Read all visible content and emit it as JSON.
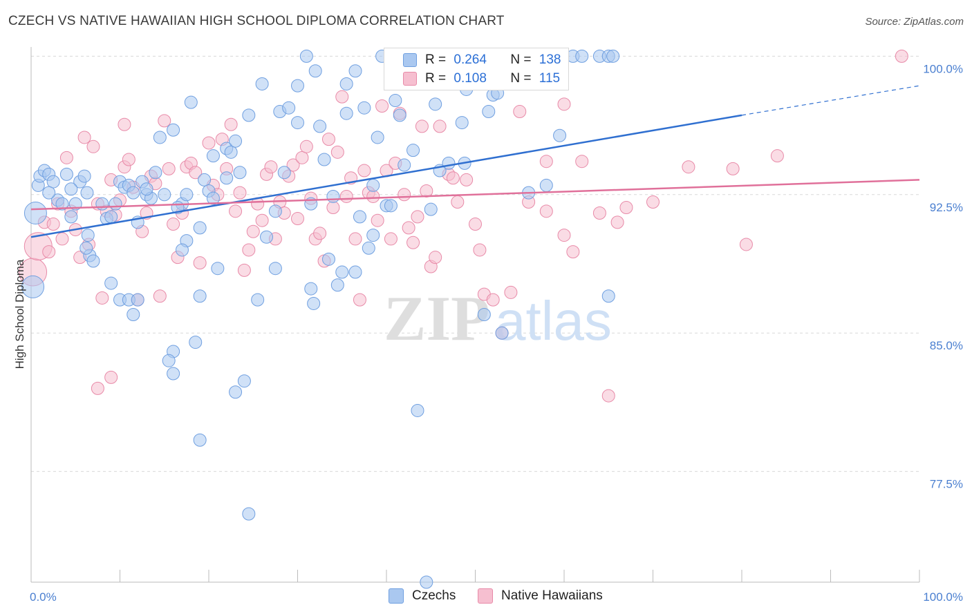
{
  "title": "CZECH VS NATIVE HAWAIIAN HIGH SCHOOL DIPLOMA CORRELATION CHART",
  "source": "Source: ZipAtlas.com",
  "watermark": {
    "zip": "ZIP",
    "atlas": "atlas"
  },
  "legend_top": {
    "czech": {
      "r_label": "R =",
      "r_value": "0.264",
      "n_label": "N =",
      "n_value": "138"
    },
    "hawaiian": {
      "r_label": "R =",
      "r_value": "0.108",
      "n_label": "N =",
      "n_value": "115"
    }
  },
  "legend_bottom": {
    "czech": "Czechs",
    "hawaiian": "Native Hawaiians"
  },
  "colors": {
    "czech_fill": "#aac8f0",
    "czech_stroke": "#6f9fe0",
    "czech_line": "#2f6fd0",
    "hawaiian_fill": "#f6bfd0",
    "hawaiian_stroke": "#e88aa8",
    "hawaiian_line": "#e0709a",
    "tick_text": "#4a7fd0",
    "grid": "#d8d8d8"
  },
  "chart_data": {
    "type": "scatter",
    "title": "CZECH VS NATIVE HAWAIIAN HIGH SCHOOL DIPLOMA CORRELATION CHART",
    "xlabel": "",
    "ylabel": "High School Diploma",
    "xlim": [
      0,
      100
    ],
    "ylim": [
      71.5,
      100.5
    ],
    "x_tick_labels": [
      "0.0%",
      "100.0%"
    ],
    "y_ticks": [
      77.5,
      85.0,
      92.5,
      100.0
    ],
    "y_tick_labels": [
      "77.5%",
      "85.0%",
      "92.5%",
      "100.0%"
    ],
    "grid": "dashed horizontal",
    "legend": "top-center",
    "series": [
      {
        "name": "Czechs",
        "r": 0.264,
        "n": 138,
        "trend": {
          "x": [
            0,
            80
          ],
          "y": [
            90.2,
            96.8
          ],
          "dashed_to": [
            100,
            98.4
          ]
        },
        "points": [
          [
            0.5,
            91.5
          ],
          [
            0.8,
            93.0
          ],
          [
            1.0,
            93.5
          ],
          [
            1.5,
            93.8
          ],
          [
            2.0,
            93.6
          ],
          [
            2.5,
            93.2
          ],
          [
            3.0,
            92.2
          ],
          [
            3.5,
            92.0
          ],
          [
            4.0,
            93.6
          ],
          [
            4.5,
            91.3
          ],
          [
            5.0,
            92.0
          ],
          [
            5.5,
            93.2
          ],
          [
            6.0,
            93.5
          ],
          [
            6.3,
            92.6
          ],
          [
            6.6,
            89.2
          ],
          [
            7.0,
            88.9
          ],
          [
            6.4,
            90.3
          ],
          [
            6.2,
            89.6
          ],
          [
            8.5,
            91.2
          ],
          [
            9.0,
            91.3
          ],
          [
            9.5,
            92.0
          ],
          [
            10.0,
            93.2
          ],
          [
            10.5,
            92.9
          ],
          [
            11.0,
            93.0
          ],
          [
            11.5,
            92.6
          ],
          [
            12.0,
            91.0
          ],
          [
            9.0,
            87.7
          ],
          [
            10.0,
            86.8
          ],
          [
            11.0,
            86.8
          ],
          [
            11.5,
            86.0
          ],
          [
            12.0,
            86.8
          ],
          [
            12.5,
            93.2
          ],
          [
            13.0,
            92.5
          ],
          [
            13.5,
            92.3
          ],
          [
            13.0,
            92.8
          ],
          [
            14.0,
            93.7
          ],
          [
            14.5,
            95.6
          ],
          [
            15.0,
            92.5
          ],
          [
            16.0,
            96.0
          ],
          [
            16.0,
            84.0
          ],
          [
            15.5,
            83.5
          ],
          [
            16.0,
            82.8
          ],
          [
            17.0,
            92.0
          ],
          [
            17.5,
            90.0
          ],
          [
            17.0,
            89.5
          ],
          [
            16.5,
            91.8
          ],
          [
            17.5,
            92.5
          ],
          [
            18.0,
            97.5
          ],
          [
            19.0,
            87.0
          ],
          [
            18.5,
            84.5
          ],
          [
            19.0,
            90.7
          ],
          [
            19.5,
            93.3
          ],
          [
            19.0,
            79.2
          ],
          [
            20.0,
            92.7
          ],
          [
            20.5,
            94.6
          ],
          [
            20.5,
            92.3
          ],
          [
            21.0,
            88.5
          ],
          [
            22.0,
            93.4
          ],
          [
            22.0,
            95.0
          ],
          [
            22.5,
            94.8
          ],
          [
            23.0,
            95.4
          ],
          [
            23.5,
            93.7
          ],
          [
            23.0,
            81.8
          ],
          [
            24.0,
            82.4
          ],
          [
            24.5,
            96.8
          ],
          [
            25.5,
            86.8
          ],
          [
            24.5,
            75.2
          ],
          [
            26.0,
            98.5
          ],
          [
            26.5,
            90.2
          ],
          [
            27.5,
            91.6
          ],
          [
            27.5,
            88.5
          ],
          [
            28.0,
            97.0
          ],
          [
            28.5,
            93.7
          ],
          [
            29.0,
            97.2
          ],
          [
            30.0,
            98.4
          ],
          [
            30.0,
            96.4
          ],
          [
            31.0,
            100.0
          ],
          [
            31.5,
            87.4
          ],
          [
            31.8,
            86.6
          ],
          [
            31.5,
            92.0
          ],
          [
            32.0,
            99.2
          ],
          [
            32.5,
            96.2
          ],
          [
            33.0,
            94.4
          ],
          [
            33.5,
            89.0
          ],
          [
            34.0,
            92.4
          ],
          [
            34.5,
            87.6
          ],
          [
            35.0,
            88.3
          ],
          [
            35.5,
            96.9
          ],
          [
            35.5,
            98.5
          ],
          [
            36.5,
            99.2
          ],
          [
            36.5,
            88.3
          ],
          [
            37.0,
            91.3
          ],
          [
            37.5,
            97.2
          ],
          [
            38.5,
            93.0
          ],
          [
            38.0,
            89.6
          ],
          [
            38.5,
            90.3
          ],
          [
            39.0,
            95.6
          ],
          [
            39.5,
            100.0
          ],
          [
            40.0,
            91.9
          ],
          [
            40.5,
            91.9
          ],
          [
            41.0,
            97.6
          ],
          [
            41.5,
            96.8
          ],
          [
            42.0,
            94.1
          ],
          [
            43.0,
            94.9
          ],
          [
            43.5,
            80.8
          ],
          [
            44.5,
            71.5
          ],
          [
            45.0,
            91.7
          ],
          [
            45.5,
            97.4
          ],
          [
            46.0,
            93.8
          ],
          [
            46.5,
            100.0
          ],
          [
            47.0,
            94.2
          ],
          [
            48.5,
            96.4
          ],
          [
            48.8,
            94.2
          ],
          [
            49.0,
            98.2
          ],
          [
            50.0,
            100.0
          ],
          [
            51.0,
            86.0
          ],
          [
            51.5,
            97.0
          ],
          [
            52.0,
            97.9
          ],
          [
            52.5,
            98.0
          ],
          [
            53.0,
            85.0
          ],
          [
            56.0,
            92.6
          ],
          [
            57.0,
            100.0
          ],
          [
            58.0,
            93.0
          ],
          [
            59.5,
            95.7
          ],
          [
            64.0,
            100.0
          ],
          [
            65.0,
            100.0
          ],
          [
            65.5,
            100.0
          ],
          [
            61.0,
            100.0
          ],
          [
            62.0,
            100.0
          ],
          [
            65.0,
            87.0
          ],
          [
            0.2,
            87.5
          ],
          [
            2.0,
            92.6
          ],
          [
            4.5,
            92.8
          ],
          [
            8.0,
            92.0
          ]
        ]
      },
      {
        "name": "Native Hawaiians",
        "r": 0.108,
        "n": 115,
        "trend": {
          "x": [
            0,
            100
          ],
          "y": [
            91.7,
            93.3
          ]
        },
        "points": [
          [
            0.2,
            88.3
          ],
          [
            0.8,
            89.7
          ],
          [
            1.5,
            91.0
          ],
          [
            2.0,
            89.4
          ],
          [
            2.5,
            90.9
          ],
          [
            3.0,
            92.0
          ],
          [
            3.5,
            90.1
          ],
          [
            4.0,
            94.5
          ],
          [
            4.5,
            91.6
          ],
          [
            5.0,
            90.6
          ],
          [
            5.5,
            89.1
          ],
          [
            6.0,
            95.6
          ],
          [
            6.5,
            89.8
          ],
          [
            7.0,
            95.1
          ],
          [
            7.5,
            92.0
          ],
          [
            7.5,
            82.0
          ],
          [
            8.0,
            86.9
          ],
          [
            8.5,
            91.6
          ],
          [
            9.0,
            93.3
          ],
          [
            9.0,
            82.6
          ],
          [
            9.5,
            91.4
          ],
          [
            10.0,
            92.2
          ],
          [
            10.5,
            94.0
          ],
          [
            10.5,
            96.3
          ],
          [
            11.0,
            94.4
          ],
          [
            11.5,
            92.9
          ],
          [
            12.0,
            86.8
          ],
          [
            12.5,
            90.5
          ],
          [
            13.0,
            91.5
          ],
          [
            13.5,
            93.5
          ],
          [
            14.0,
            93.1
          ],
          [
            14.5,
            87.0
          ],
          [
            15.0,
            96.5
          ],
          [
            15.5,
            93.9
          ],
          [
            16.0,
            90.9
          ],
          [
            16.5,
            89.1
          ],
          [
            17.0,
            91.5
          ],
          [
            17.5,
            94.0
          ],
          [
            18.0,
            94.2
          ],
          [
            18.5,
            93.7
          ],
          [
            19.0,
            88.8
          ],
          [
            20.0,
            95.3
          ],
          [
            20.5,
            93.0
          ],
          [
            21.0,
            92.5
          ],
          [
            21.5,
            95.5
          ],
          [
            22.0,
            93.9
          ],
          [
            22.5,
            96.3
          ],
          [
            23.0,
            91.6
          ],
          [
            23.5,
            92.6
          ],
          [
            24.0,
            88.4
          ],
          [
            24.5,
            89.5
          ],
          [
            25.0,
            90.5
          ],
          [
            25.5,
            92.0
          ],
          [
            26.0,
            91.1
          ],
          [
            26.5,
            93.6
          ],
          [
            27.0,
            94.0
          ],
          [
            27.5,
            90.1
          ],
          [
            28.0,
            92.1
          ],
          [
            28.5,
            91.5
          ],
          [
            29.0,
            93.5
          ],
          [
            29.5,
            94.1
          ],
          [
            30.0,
            91.2
          ],
          [
            30.5,
            94.5
          ],
          [
            31.0,
            95.1
          ],
          [
            31.5,
            92.3
          ],
          [
            32.0,
            90.1
          ],
          [
            32.5,
            90.4
          ],
          [
            33.0,
            88.9
          ],
          [
            33.5,
            95.5
          ],
          [
            34.0,
            91.8
          ],
          [
            34.5,
            94.8
          ],
          [
            35.0,
            97.8
          ],
          [
            35.5,
            92.4
          ],
          [
            36.0,
            93.4
          ],
          [
            36.5,
            90.1
          ],
          [
            37.0,
            86.8
          ],
          [
            37.5,
            93.8
          ],
          [
            38.0,
            92.6
          ],
          [
            38.5,
            92.4
          ],
          [
            39.0,
            91.1
          ],
          [
            39.5,
            97.3
          ],
          [
            40.0,
            93.8
          ],
          [
            40.5,
            90.1
          ],
          [
            41.0,
            94.2
          ],
          [
            41.5,
            96.9
          ],
          [
            42.0,
            92.5
          ],
          [
            42.5,
            90.7
          ],
          [
            43.0,
            89.9
          ],
          [
            43.5,
            91.3
          ],
          [
            44.0,
            96.2
          ],
          [
            44.5,
            92.7
          ],
          [
            45.0,
            88.6
          ],
          [
            45.5,
            89.1
          ],
          [
            46.0,
            96.2
          ],
          [
            47.0,
            93.6
          ],
          [
            47.5,
            93.4
          ],
          [
            48.0,
            92.1
          ],
          [
            49.0,
            93.3
          ],
          [
            50.0,
            90.9
          ],
          [
            50.5,
            89.5
          ],
          [
            51.0,
            87.1
          ],
          [
            52.0,
            86.8
          ],
          [
            53.0,
            85.0
          ],
          [
            54.0,
            87.2
          ],
          [
            55.0,
            97.0
          ],
          [
            56.0,
            92.1
          ],
          [
            57.0,
            98.9
          ],
          [
            58.0,
            94.3
          ],
          [
            60.0,
            97.4
          ],
          [
            62.0,
            94.3
          ],
          [
            64.0,
            91.5
          ],
          [
            65.0,
            81.6
          ],
          [
            67.0,
            91.8
          ],
          [
            70.0,
            92.1
          ],
          [
            74.0,
            94.0
          ],
          [
            79.0,
            93.9
          ],
          [
            80.5,
            89.8
          ],
          [
            84.0,
            94.6
          ],
          [
            98.0,
            100.0
          ],
          [
            58.0,
            91.6
          ],
          [
            60.0,
            90.3
          ],
          [
            61.0,
            89.4
          ],
          [
            66.0,
            91.0
          ]
        ]
      }
    ]
  }
}
